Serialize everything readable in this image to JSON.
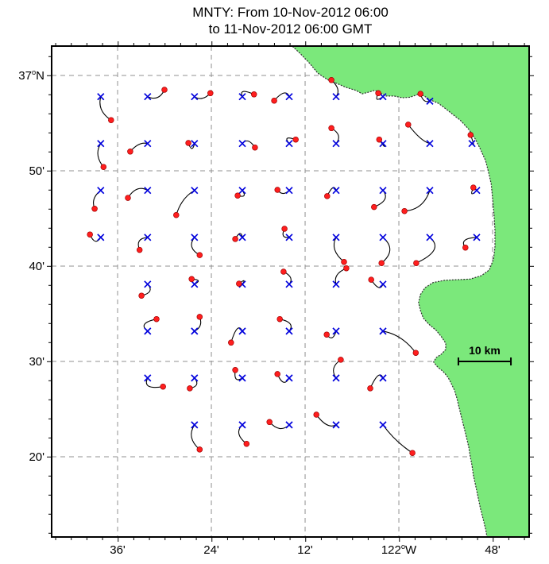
{
  "title": {
    "line1": "MNTY: From 10-Nov-2012 06:00",
    "line2": "to 11-Nov-2012 06:00 GMT"
  },
  "chart_data": {
    "type": "scatter",
    "subtype": "trajectory-map",
    "title": "MNTY: From 10-Nov-2012 06:00 to 11-Nov-2012 06:00 GMT",
    "x_axis": {
      "unit": "longitude (degrees West)",
      "left_lon_w": 122.7407,
      "right_lon_w": 121.7221,
      "tick_lons_w": [
        122.6,
        122.4,
        122.2,
        122.0,
        121.8
      ],
      "tick_labels": [
        "36'",
        "24'",
        "12'",
        "122°W",
        "48'"
      ],
      "minor_tick_step_deg": 0.033333
    },
    "y_axis": {
      "unit": "latitude (degrees North)",
      "top_lat": 37.0514,
      "bottom_lat": 36.1931,
      "tick_lats": [
        37.0,
        36.8333,
        36.6667,
        36.5,
        36.3333
      ],
      "tick_labels": [
        "37°N",
        "50'",
        "40'",
        "30'",
        "20'"
      ],
      "minor_tick_step_deg": 0.033333
    },
    "grid": {
      "on": true,
      "style": "dashed"
    },
    "markers": {
      "start": {
        "shape": "x",
        "color": "#0000dd"
      },
      "end": {
        "shape": "filled-circle",
        "color": "#ff1e1e"
      }
    },
    "colors": {
      "land": "#7be87b",
      "coast_edge": "#2f2f2f",
      "grid": "#909090",
      "trajectory": "#000000",
      "start_marker": "#0000dd",
      "end_marker": "#ff1e1e",
      "end_marker_edge": "#a00000",
      "frame": "#000000"
    },
    "scale_bar": {
      "label": "10 km",
      "lat": 36.5,
      "lon_w_start": 121.873,
      "lon_w_end": 121.761,
      "length_km": 10
    },
    "coastline_lonW_lat": [
      [
        122.227,
        37.051
      ],
      [
        122.21,
        37.038
      ],
      [
        122.19,
        37.021
      ],
      [
        122.173,
        37.004
      ],
      [
        122.153,
        36.993
      ],
      [
        122.132,
        36.986
      ],
      [
        122.112,
        36.979
      ],
      [
        122.092,
        36.974
      ],
      [
        122.078,
        36.968
      ],
      [
        122.064,
        36.971
      ],
      [
        122.051,
        36.974
      ],
      [
        122.039,
        36.969
      ],
      [
        122.027,
        36.964
      ],
      [
        122.01,
        36.964
      ],
      [
        121.993,
        36.961
      ],
      [
        121.976,
        36.962
      ],
      [
        121.959,
        36.967
      ],
      [
        121.946,
        36.964
      ],
      [
        121.932,
        36.957
      ],
      [
        121.915,
        36.951
      ],
      [
        121.902,
        36.943
      ],
      [
        121.885,
        36.932
      ],
      [
        121.868,
        36.921
      ],
      [
        121.851,
        36.906
      ],
      [
        121.837,
        36.889
      ],
      [
        121.826,
        36.871
      ],
      [
        121.815,
        36.851
      ],
      [
        121.809,
        36.832
      ],
      [
        121.803,
        36.81
      ],
      [
        121.8,
        36.785
      ],
      [
        121.797,
        36.757
      ],
      [
        121.795,
        36.729
      ],
      [
        121.795,
        36.701
      ],
      [
        121.798,
        36.679
      ],
      [
        121.807,
        36.66
      ],
      [
        121.824,
        36.65
      ],
      [
        121.848,
        36.644
      ],
      [
        121.875,
        36.643
      ],
      [
        121.902,
        36.642
      ],
      [
        121.927,
        36.638
      ],
      [
        121.944,
        36.629
      ],
      [
        121.954,
        36.617
      ],
      [
        121.958,
        36.603
      ],
      [
        121.954,
        36.589
      ],
      [
        121.948,
        36.576
      ],
      [
        121.936,
        36.565
      ],
      [
        121.92,
        36.554
      ],
      [
        121.909,
        36.543
      ],
      [
        121.9,
        36.532
      ],
      [
        121.9,
        36.521
      ],
      [
        121.909,
        36.513
      ],
      [
        121.92,
        36.507
      ],
      [
        121.926,
        36.499
      ],
      [
        121.917,
        36.49
      ],
      [
        121.905,
        36.482
      ],
      [
        121.895,
        36.472
      ],
      [
        121.888,
        36.461
      ],
      [
        121.881,
        36.449
      ],
      [
        121.876,
        36.435
      ],
      [
        121.871,
        36.418
      ],
      [
        121.866,
        36.401
      ],
      [
        121.861,
        36.385
      ],
      [
        121.856,
        36.368
      ],
      [
        121.851,
        36.351
      ],
      [
        121.848,
        36.335
      ],
      [
        121.844,
        36.318
      ],
      [
        121.841,
        36.301
      ],
      [
        121.836,
        36.282
      ],
      [
        121.831,
        36.263
      ],
      [
        121.826,
        36.243
      ],
      [
        121.82,
        36.224
      ],
      [
        121.815,
        36.207
      ],
      [
        121.812,
        36.193
      ],
      [
        121.722,
        36.193
      ],
      [
        121.722,
        37.051
      ]
    ],
    "drifters": [
      {
        "start": [
          122.636,
          36.963
        ],
        "via": [
          122.644,
          36.938
        ],
        "end": [
          122.614,
          36.922
        ]
      },
      {
        "start": [
          122.536,
          36.963
        ],
        "via": [
          122.512,
          36.954
        ],
        "end": [
          122.5,
          36.975
        ]
      },
      {
        "start": [
          122.436,
          36.963
        ],
        "via": [
          122.419,
          36.954
        ],
        "end": [
          122.402,
          36.969
        ]
      },
      {
        "start": [
          122.334,
          36.963
        ],
        "via": [
          122.342,
          36.979
        ],
        "end": [
          122.309,
          36.967
        ]
      },
      {
        "start": [
          122.234,
          36.963
        ],
        "via": [
          122.241,
          36.979
        ],
        "end": [
          122.266,
          36.956
        ]
      },
      {
        "start": [
          122.134,
          36.963
        ],
        "via": [
          122.122,
          36.976
        ],
        "end": [
          122.144,
          36.992
        ]
      },
      {
        "start": [
          122.034,
          36.963
        ],
        "via": [
          122.054,
          36.951
        ],
        "end": [
          122.044,
          36.969
        ]
      },
      {
        "start": [
          121.934,
          36.955
        ],
        "via": [
          121.948,
          36.951
        ],
        "end": [
          121.954,
          36.968
        ]
      },
      {
        "start": [
          122.636,
          36.881
        ],
        "via": [
          122.651,
          36.861
        ],
        "end": [
          122.63,
          36.84
        ]
      },
      {
        "start": [
          122.536,
          36.881
        ],
        "via": [
          122.554,
          36.885
        ],
        "end": [
          122.573,
          36.867
        ]
      },
      {
        "start": [
          122.436,
          36.881
        ],
        "via": [
          122.441,
          36.863
        ],
        "end": [
          122.449,
          36.882
        ]
      },
      {
        "start": [
          122.334,
          36.881
        ],
        "via": [
          122.322,
          36.893
        ],
        "end": [
          122.307,
          36.874
        ]
      },
      {
        "start": [
          122.234,
          36.881
        ],
        "via": [
          122.249,
          36.896
        ],
        "end": [
          122.22,
          36.888
        ]
      },
      {
        "start": [
          122.134,
          36.881
        ],
        "via": [
          122.119,
          36.896
        ],
        "end": [
          122.144,
          36.908
        ]
      },
      {
        "start": [
          122.034,
          36.881
        ],
        "via": [
          122.025,
          36.868
        ],
        "end": [
          122.042,
          36.888
        ]
      },
      {
        "start": [
          121.934,
          36.881
        ],
        "via": [
          121.953,
          36.885
        ],
        "end": [
          121.98,
          36.914
        ]
      },
      {
        "start": [
          121.844,
          36.881
        ],
        "via": [
          121.836,
          36.872
        ],
        "end": [
          121.847,
          36.896
        ]
      },
      {
        "start": [
          122.636,
          36.799
        ],
        "via": [
          122.658,
          36.785
        ],
        "end": [
          122.649,
          36.767
        ]
      },
      {
        "start": [
          122.536,
          36.799
        ],
        "via": [
          122.559,
          36.81
        ],
        "end": [
          122.578,
          36.786
        ]
      },
      {
        "start": [
          122.436,
          36.799
        ],
        "via": [
          122.464,
          36.786
        ],
        "end": [
          122.475,
          36.756
        ]
      },
      {
        "start": [
          122.334,
          36.799
        ],
        "via": [
          122.322,
          36.785
        ],
        "end": [
          122.344,
          36.79
        ]
      },
      {
        "start": [
          122.234,
          36.799
        ],
        "via": [
          122.248,
          36.788
        ],
        "end": [
          122.259,
          36.8
        ]
      },
      {
        "start": [
          122.134,
          36.799
        ],
        "via": [
          122.139,
          36.813
        ],
        "end": [
          122.153,
          36.789
        ]
      },
      {
        "start": [
          122.034,
          36.799
        ],
        "via": [
          122.017,
          36.782
        ],
        "end": [
          122.053,
          36.77
        ]
      },
      {
        "start": [
          121.934,
          36.799
        ],
        "via": [
          121.948,
          36.765
        ],
        "end": [
          121.988,
          36.763
        ]
      },
      {
        "start": [
          121.834,
          36.799
        ],
        "via": [
          121.851,
          36.785
        ],
        "end": [
          121.841,
          36.804
        ]
      },
      {
        "start": [
          122.636,
          36.717
        ],
        "via": [
          122.648,
          36.701
        ],
        "end": [
          122.659,
          36.722
        ]
      },
      {
        "start": [
          122.536,
          36.717
        ],
        "via": [
          122.563,
          36.715
        ],
        "end": [
          122.553,
          36.695
        ]
      },
      {
        "start": [
          122.436,
          36.717
        ],
        "via": [
          122.453,
          36.699
        ],
        "end": [
          122.425,
          36.686
        ]
      },
      {
        "start": [
          122.334,
          36.717
        ],
        "via": [
          122.337,
          36.732
        ],
        "end": [
          122.349,
          36.714
        ]
      },
      {
        "start": [
          122.234,
          36.717
        ],
        "via": [
          122.254,
          36.715
        ],
        "end": [
          122.244,
          36.732
        ]
      },
      {
        "start": [
          122.134,
          36.717
        ],
        "via": [
          122.148,
          36.695
        ],
        "end": [
          122.117,
          36.674
        ]
      },
      {
        "start": [
          122.034,
          36.717
        ],
        "via": [
          122.003,
          36.695
        ],
        "end": [
          122.037,
          36.672
        ]
      },
      {
        "start": [
          121.934,
          36.717
        ],
        "via": [
          121.902,
          36.695
        ],
        "end": [
          121.963,
          36.672
        ]
      },
      {
        "start": [
          121.834,
          36.717
        ],
        "via": [
          121.873,
          36.715
        ],
        "end": [
          121.858,
          36.699
        ]
      },
      {
        "start": [
          122.536,
          36.635
        ],
        "via": [
          122.52,
          36.621
        ],
        "end": [
          122.549,
          36.615
        ]
      },
      {
        "start": [
          122.436,
          36.635
        ],
        "via": [
          122.417,
          36.643
        ],
        "end": [
          122.442,
          36.644
        ]
      },
      {
        "start": [
          122.334,
          36.635
        ],
        "via": [
          122.324,
          36.647
        ],
        "end": [
          122.341,
          36.636
        ]
      },
      {
        "start": [
          122.234,
          36.635
        ],
        "via": [
          122.222,
          36.647
        ],
        "end": [
          122.246,
          36.657
        ]
      },
      {
        "start": [
          122.134,
          36.635
        ],
        "via": [
          122.141,
          36.653
        ],
        "end": [
          122.112,
          36.663
        ]
      },
      {
        "start": [
          122.034,
          36.635
        ],
        "via": [
          122.041,
          36.62
        ],
        "end": [
          122.059,
          36.643
        ]
      },
      {
        "start": [
          122.536,
          36.553
        ],
        "via": [
          122.558,
          36.567
        ],
        "end": [
          122.517,
          36.574
        ]
      },
      {
        "start": [
          122.436,
          36.553
        ],
        "via": [
          122.417,
          36.561
        ],
        "end": [
          122.425,
          36.578
        ]
      },
      {
        "start": [
          122.334,
          36.553
        ],
        "via": [
          122.344,
          36.571
        ],
        "end": [
          122.358,
          36.533
        ]
      },
      {
        "start": [
          122.234,
          36.553
        ],
        "via": [
          122.22,
          36.568
        ],
        "end": [
          122.254,
          36.574
        ]
      },
      {
        "start": [
          122.134,
          36.553
        ],
        "via": [
          122.141,
          36.533
        ],
        "end": [
          122.154,
          36.547
        ]
      },
      {
        "start": [
          122.034,
          36.553
        ],
        "via": [
          121.993,
          36.547
        ],
        "end": [
          121.964,
          36.515
        ]
      },
      {
        "start": [
          122.536,
          36.471
        ],
        "via": [
          122.548,
          36.45
        ],
        "end": [
          122.503,
          36.456
        ]
      },
      {
        "start": [
          122.436,
          36.471
        ],
        "via": [
          122.422,
          36.457
        ],
        "end": [
          122.446,
          36.453
        ]
      },
      {
        "start": [
          122.334,
          36.471
        ],
        "via": [
          122.353,
          36.461
        ],
        "end": [
          122.349,
          36.485
        ]
      },
      {
        "start": [
          122.234,
          36.471
        ],
        "via": [
          122.246,
          36.453
        ],
        "end": [
          122.259,
          36.478
        ]
      },
      {
        "start": [
          122.134,
          36.471
        ],
        "via": [
          122.149,
          36.489
        ],
        "end": [
          122.124,
          36.503
        ]
      },
      {
        "start": [
          122.034,
          36.471
        ],
        "via": [
          122.042,
          36.488
        ],
        "end": [
          122.061,
          36.453
        ]
      },
      {
        "start": [
          122.436,
          36.389
        ],
        "via": [
          122.454,
          36.367
        ],
        "end": [
          122.425,
          36.346
        ]
      },
      {
        "start": [
          122.334,
          36.389
        ],
        "via": [
          122.353,
          36.374
        ],
        "end": [
          122.325,
          36.356
        ]
      },
      {
        "start": [
          122.234,
          36.389
        ],
        "via": [
          122.254,
          36.374
        ],
        "end": [
          122.276,
          36.394
        ]
      },
      {
        "start": [
          122.134,
          36.389
        ],
        "via": [
          122.153,
          36.381
        ],
        "end": [
          122.176,
          36.407
        ]
      },
      {
        "start": [
          122.034,
          36.389
        ],
        "via": [
          122.008,
          36.36
        ],
        "end": [
          121.971,
          36.34
        ]
      }
    ]
  }
}
